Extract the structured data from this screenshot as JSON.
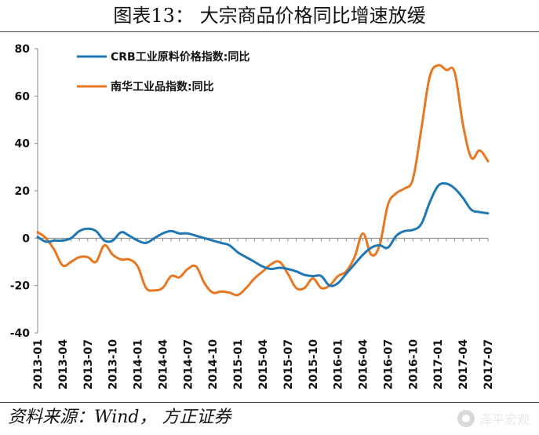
{
  "title": "图表13：  大宗商品价格同比增速放缓",
  "source": "资料来源：Wind， 方正证券",
  "watermark": "泽平宏观",
  "chart_data": {
    "type": "line",
    "ylim": [
      -40,
      80
    ],
    "yticks": [
      "80",
      "60",
      "40",
      "20",
      "0",
      "-20",
      "-40"
    ],
    "ytick_values": [
      80,
      60,
      40,
      20,
      0,
      -20,
      -40
    ],
    "xtick_labels": [
      "2013-01",
      "2013-04",
      "2013-07",
      "2013-10",
      "2014-01",
      "2014-04",
      "2014-07",
      "2014-10",
      "2015-01",
      "2015-04",
      "2015-07",
      "2015-10",
      "2016-01",
      "2016-04",
      "2016-07",
      "2016-10",
      "2017-01",
      "2017-04",
      "2017-07"
    ],
    "x": [
      "2013-01",
      "2013-02",
      "2013-03",
      "2013-04",
      "2013-05",
      "2013-06",
      "2013-07",
      "2013-08",
      "2013-09",
      "2013-10",
      "2013-11",
      "2013-12",
      "2014-01",
      "2014-02",
      "2014-03",
      "2014-04",
      "2014-05",
      "2014-06",
      "2014-07",
      "2014-08",
      "2014-09",
      "2014-10",
      "2014-11",
      "2014-12",
      "2015-01",
      "2015-02",
      "2015-03",
      "2015-04",
      "2015-05",
      "2015-06",
      "2015-07",
      "2015-08",
      "2015-09",
      "2015-10",
      "2015-11",
      "2015-12",
      "2016-01",
      "2016-02",
      "2016-03",
      "2016-04",
      "2016-05",
      "2016-06",
      "2016-07",
      "2016-08",
      "2016-09",
      "2016-10",
      "2016-11",
      "2016-12",
      "2017-01",
      "2017-02",
      "2017-03",
      "2017-04",
      "2017-05",
      "2017-06",
      "2017-07"
    ],
    "series": [
      {
        "name": "CRB工业原料价格指数:同比",
        "color": "#1f77b4",
        "values": [
          0.5,
          -1.5,
          -1,
          -1,
          0,
          3,
          4,
          3,
          -1,
          -1,
          2.5,
          1,
          -1,
          -2,
          0,
          2,
          3,
          2,
          2,
          1,
          0,
          -1,
          -2,
          -3,
          -6,
          -8,
          -10,
          -12,
          -13,
          -12.5,
          -13,
          -14,
          -15.5,
          -16,
          -16,
          -20,
          -19,
          -15,
          -11,
          -7,
          -4,
          -3,
          -4,
          1,
          3,
          3.5,
          6,
          15,
          22,
          23,
          21,
          17,
          12,
          11,
          10.5
        ]
      },
      {
        "name": "南华工业品指数:同比",
        "color": "#e87722",
        "values": [
          2.5,
          0,
          -5,
          -11.5,
          -10,
          -8,
          -8,
          -10,
          -3,
          -7,
          -9,
          -9,
          -12,
          -21,
          -22,
          -21,
          -16,
          -16.5,
          -13,
          -12,
          -19,
          -23,
          -22.5,
          -23,
          -24,
          -21,
          -17,
          -14,
          -11,
          -10,
          -15,
          -21,
          -21,
          -17,
          -21,
          -20,
          -16,
          -14,
          -8,
          2,
          -7,
          -3,
          14,
          19,
          21,
          25,
          46,
          68,
          73,
          71,
          70,
          48,
          34,
          37,
          32.5
        ]
      }
    ],
    "legend_position": "top-left",
    "grid": false
  }
}
